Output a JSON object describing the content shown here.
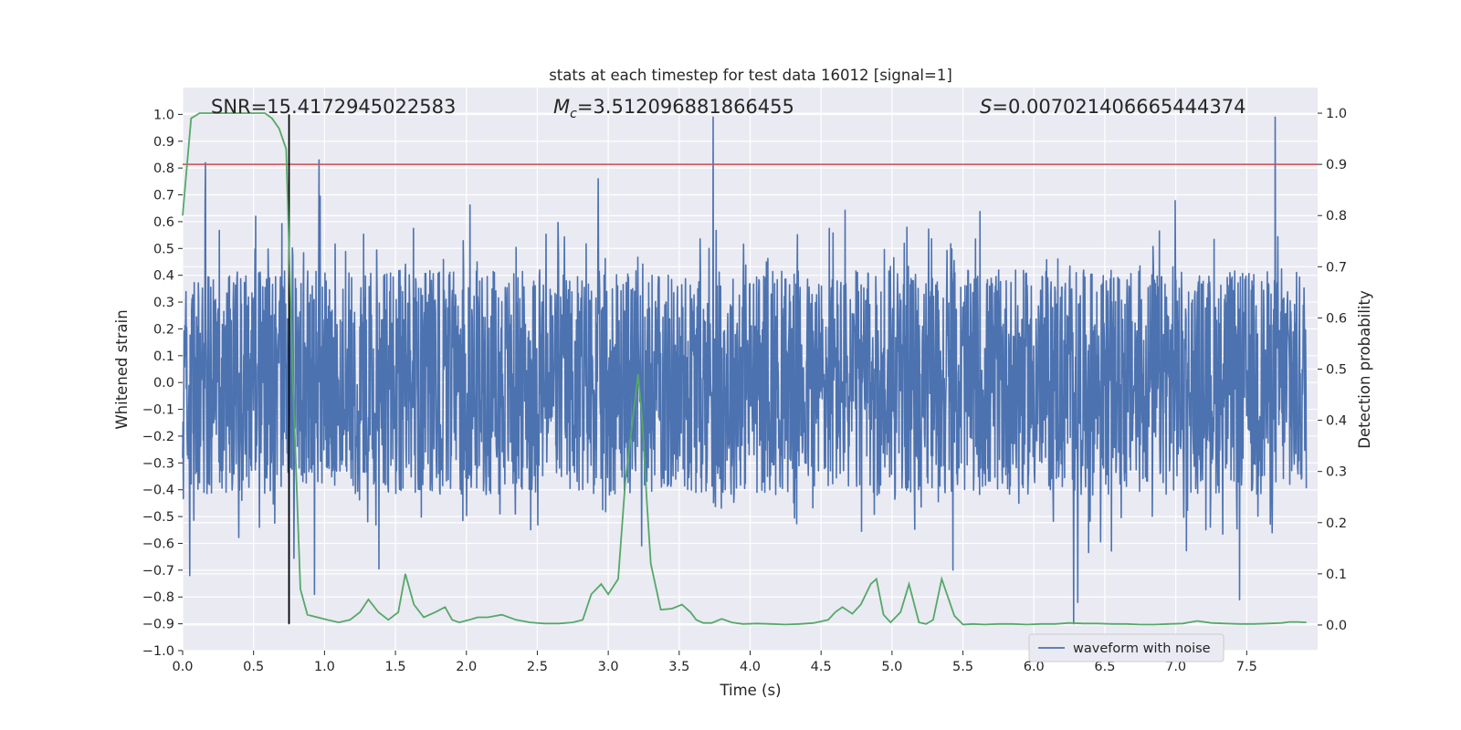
{
  "chart_data": {
    "type": "line",
    "title": "stats at each timestep for test data 16012 [signal=1]",
    "xlabel": "Time (s)",
    "ylabel_left": "Whitened strain",
    "ylabel_right": "Detection probability",
    "xlim": [
      0.0,
      8.0
    ],
    "ylim_left": [
      -1.0,
      1.1
    ],
    "ylim_right": [
      -0.05,
      1.05
    ],
    "x_ticks": [
      "0.0",
      "0.5",
      "1.0",
      "1.5",
      "2.0",
      "2.5",
      "3.0",
      "3.5",
      "4.0",
      "4.5",
      "5.0",
      "5.5",
      "6.0",
      "6.5",
      "7.0",
      "7.5"
    ],
    "y_left_ticks": [
      "1.0",
      "0.9",
      "0.8",
      "0.7",
      "0.6",
      "0.5",
      "0.4",
      "0.3",
      "0.2",
      "0.1",
      "0.0",
      "−0.1",
      "−0.2",
      "−0.3",
      "−0.4",
      "−0.5",
      "−0.6",
      "−0.7",
      "−0.8",
      "−0.9",
      "−1.0"
    ],
    "y_right_ticks": [
      "1.0",
      "0.9",
      "0.8",
      "0.7",
      "0.6",
      "0.5",
      "0.4",
      "0.3",
      "0.2",
      "0.1",
      "0.0"
    ],
    "annotations": {
      "snr": "SNR=15.4172945022583",
      "mc_symbol": "M",
      "mc_sub": "c",
      "mc_value": "=3.512096881866455",
      "s_symbol": "S",
      "s_value": "=0.007021406665444374"
    },
    "legend": [
      "waveform with noise"
    ],
    "grid": true,
    "threshold_line": {
      "axis": "right",
      "value": 0.9,
      "color": "#c44e52"
    },
    "vertical_line": {
      "x": 0.75,
      "y_from": -0.9,
      "y_to": 1.0,
      "color": "#000000"
    },
    "waveform": {
      "name": "waveform with noise",
      "color": "#4c72b0",
      "envelope_typical": 0.42,
      "notable_peaks": [
        {
          "x": 0.16,
          "y": 0.82
        },
        {
          "x": 0.96,
          "y": 0.83
        },
        {
          "x": 2.93,
          "y": 0.76
        },
        {
          "x": 3.74,
          "y": 0.99
        },
        {
          "x": 7.7,
          "y": 0.99
        },
        {
          "x": 0.05,
          "y": -0.72
        },
        {
          "x": 0.75,
          "y": -0.9
        },
        {
          "x": 0.93,
          "y": -0.79
        },
        {
          "x": 6.28,
          "y": -0.9
        },
        {
          "x": 6.31,
          "y": -0.82
        },
        {
          "x": 7.45,
          "y": -0.81
        }
      ]
    },
    "probability_series": {
      "name": "detection probability",
      "color": "#55a868",
      "x": [
        0.0,
        0.06,
        0.12,
        0.2,
        0.3,
        0.4,
        0.5,
        0.58,
        0.63,
        0.68,
        0.73,
        0.78,
        0.83,
        0.88,
        0.95,
        1.02,
        1.1,
        1.18,
        1.25,
        1.31,
        1.38,
        1.45,
        1.52,
        1.57,
        1.63,
        1.7,
        1.78,
        1.85,
        1.9,
        1.95,
        2.02,
        2.08,
        2.15,
        2.25,
        2.35,
        2.45,
        2.55,
        2.65,
        2.75,
        2.82,
        2.88,
        2.95,
        3.0,
        3.07,
        3.12,
        3.18,
        3.21,
        3.24,
        3.27,
        3.3,
        3.37,
        3.45,
        3.52,
        3.58,
        3.62,
        3.67,
        3.73,
        3.8,
        3.87,
        3.95,
        4.05,
        4.15,
        4.25,
        4.35,
        4.45,
        4.55,
        4.6,
        4.65,
        4.72,
        4.78,
        4.85,
        4.89,
        4.94,
        4.99,
        5.06,
        5.12,
        5.19,
        5.24,
        5.29,
        5.35,
        5.44,
        5.5,
        5.57,
        5.65,
        5.75,
        5.85,
        5.95,
        6.05,
        6.15,
        6.25,
        6.35,
        6.45,
        6.55,
        6.65,
        6.75,
        6.85,
        6.95,
        7.05,
        7.15,
        7.25,
        7.35,
        7.45,
        7.55,
        7.65,
        7.75,
        7.8,
        7.86,
        7.92
      ],
      "values": [
        0.8,
        0.99,
        1.0,
        1.0,
        1.0,
        1.0,
        1.0,
        1.0,
        0.99,
        0.97,
        0.93,
        0.45,
        0.07,
        0.02,
        0.015,
        0.01,
        0.005,
        0.01,
        0.025,
        0.05,
        0.025,
        0.01,
        0.025,
        0.1,
        0.04,
        0.015,
        0.025,
        0.035,
        0.01,
        0.005,
        0.01,
        0.015,
        0.015,
        0.02,
        0.01,
        0.005,
        0.003,
        0.003,
        0.005,
        0.01,
        0.06,
        0.08,
        0.06,
        0.09,
        0.28,
        0.42,
        0.49,
        0.4,
        0.25,
        0.12,
        0.03,
        0.032,
        0.04,
        0.025,
        0.01,
        0.004,
        0.004,
        0.012,
        0.005,
        0.002,
        0.003,
        0.002,
        0.001,
        0.002,
        0.004,
        0.01,
        0.025,
        0.035,
        0.022,
        0.04,
        0.08,
        0.09,
        0.02,
        0.005,
        0.025,
        0.08,
        0.005,
        0.002,
        0.01,
        0.09,
        0.018,
        0.001,
        0.002,
        0.001,
        0.002,
        0.002,
        0.001,
        0.002,
        0.002,
        0.004,
        0.003,
        0.003,
        0.002,
        0.002,
        0.001,
        0.001,
        0.002,
        0.003,
        0.008,
        0.004,
        0.003,
        0.002,
        0.002,
        0.003,
        0.004,
        0.006,
        0.006,
        0.005
      ]
    }
  }
}
